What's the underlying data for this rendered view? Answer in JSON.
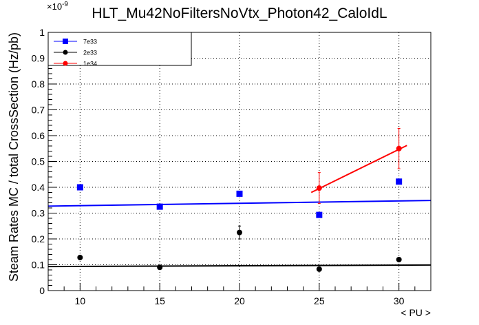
{
  "chart_data": {
    "type": "scatter",
    "title": "HLT_Mu42NoFiltersNoVtx_Photon42_CaloIdL",
    "xlabel": "< PU >",
    "ylabel": "Steam Rates MC / total CrossSection (Hz/pb)",
    "y_exponent_label": "×10",
    "y_exponent_power": "-9",
    "xlim": [
      8,
      32
    ],
    "ylim": [
      0,
      1
    ],
    "x_ticks": [
      10,
      15,
      20,
      25,
      30
    ],
    "x_tick_labels": [
      "10",
      "15",
      "20",
      "25",
      "30"
    ],
    "y_ticks": [
      0,
      0.1,
      0.2,
      0.3,
      0.4,
      0.5,
      0.6,
      0.7,
      0.8,
      0.9,
      1
    ],
    "y_tick_labels": [
      "0",
      "0.1",
      "0.2",
      "0.3",
      "0.4",
      "0.5",
      "0.6",
      "0.7",
      "0.8",
      "0.9",
      "1"
    ],
    "grid": true,
    "legend_position": "top-left",
    "series": [
      {
        "name": "7e33",
        "color": "#0000ff",
        "marker": "square",
        "x": [
          10,
          15,
          20,
          25,
          30
        ],
        "y": [
          0.4,
          0.325,
          0.375,
          0.293,
          0.422
        ],
        "yerr": [
          0,
          0,
          0,
          0,
          0
        ],
        "fit": {
          "x": [
            8,
            32
          ],
          "y": [
            0.327,
            0.349
          ]
        }
      },
      {
        "name": "2e33",
        "color": "#000000",
        "marker": "circle",
        "x": [
          10,
          15,
          20,
          25,
          30
        ],
        "y": [
          0.128,
          0.09,
          0.225,
          0.083,
          0.12
        ],
        "yerr": [
          0,
          0,
          0.025,
          0,
          0
        ],
        "fit": {
          "x": [
            8,
            32
          ],
          "y": [
            0.093,
            0.099
          ]
        }
      },
      {
        "name": "1e34",
        "color": "#ff0000",
        "marker": "circle",
        "x": [
          25,
          30
        ],
        "y": [
          0.397,
          0.55
        ],
        "yerr": [
          0.06,
          0.078
        ],
        "fit": {
          "x": [
            24.5,
            30.5
          ],
          "y": [
            0.38,
            0.562
          ]
        }
      }
    ]
  }
}
